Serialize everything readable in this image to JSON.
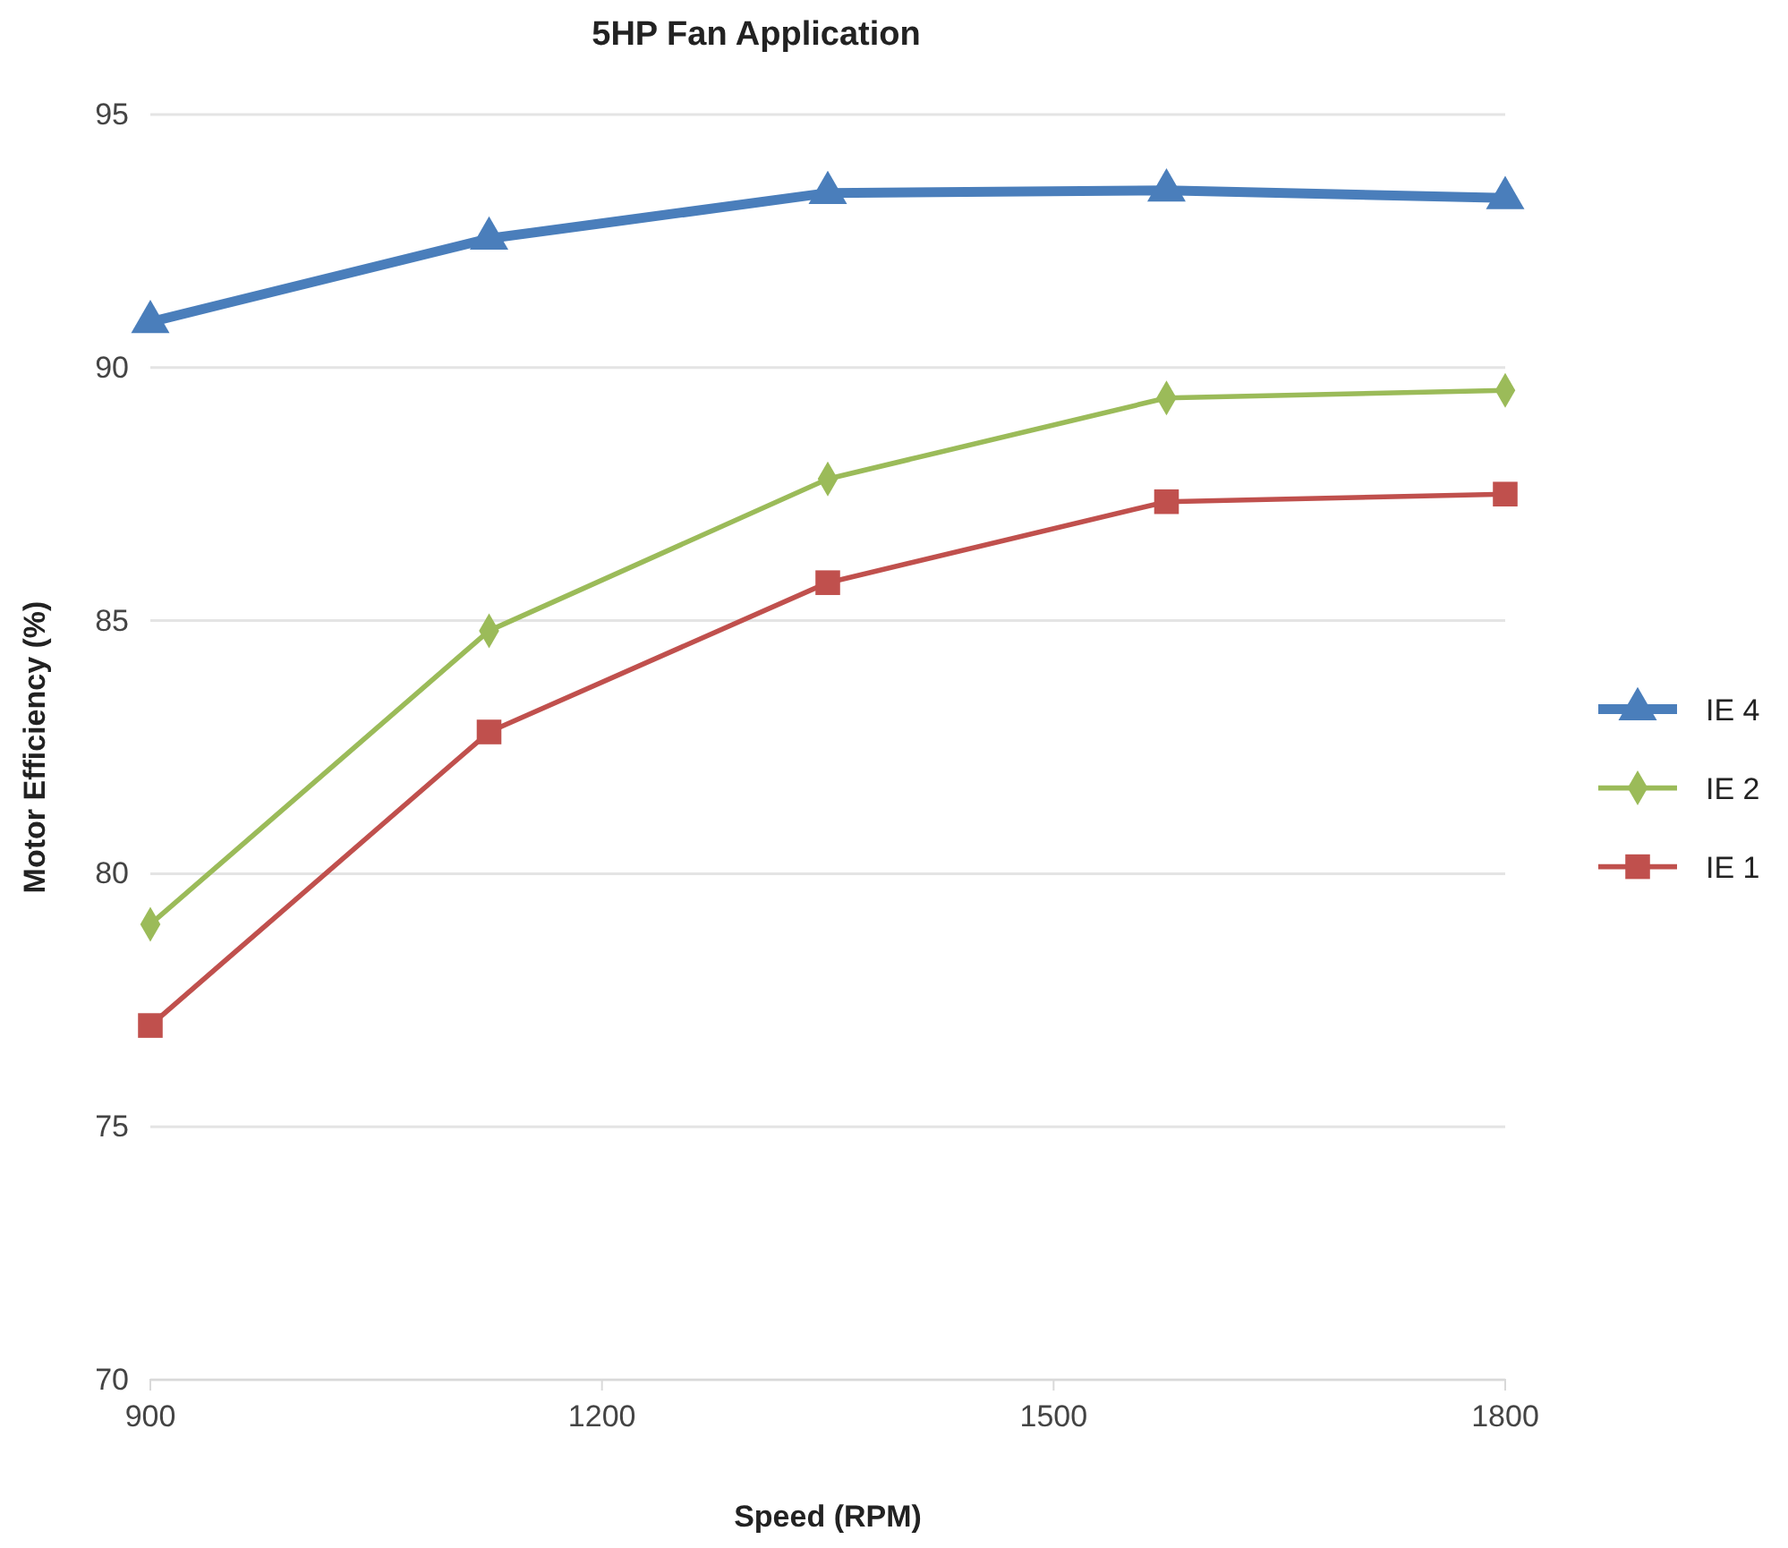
{
  "chart_data": {
    "type": "line",
    "title": "5HP Fan Application",
    "xlabel": "Speed (RPM)",
    "ylabel": "Motor Efficiency (%)",
    "x": [
      900,
      1125,
      1350,
      1575,
      1800
    ],
    "xlim": [
      900,
      1800
    ],
    "xticks": [
      900,
      1200,
      1500,
      1800
    ],
    "ylim": [
      70,
      95
    ],
    "yticks": [
      70,
      75,
      80,
      85,
      90,
      95
    ],
    "grid": "y",
    "legend": "right",
    "series": [
      {
        "name": "IE 4",
        "color": "#4a7ebb",
        "marker": "triangle",
        "values": [
          90.9,
          92.55,
          93.45,
          93.5,
          93.35
        ]
      },
      {
        "name": "IE 2",
        "color": "#9bbb59",
        "marker": "diamond",
        "values": [
          79.0,
          84.8,
          87.8,
          89.4,
          89.55
        ]
      },
      {
        "name": "IE 1",
        "color": "#c0504d",
        "marker": "square",
        "values": [
          77.0,
          82.8,
          85.75,
          87.35,
          87.5
        ]
      }
    ]
  }
}
